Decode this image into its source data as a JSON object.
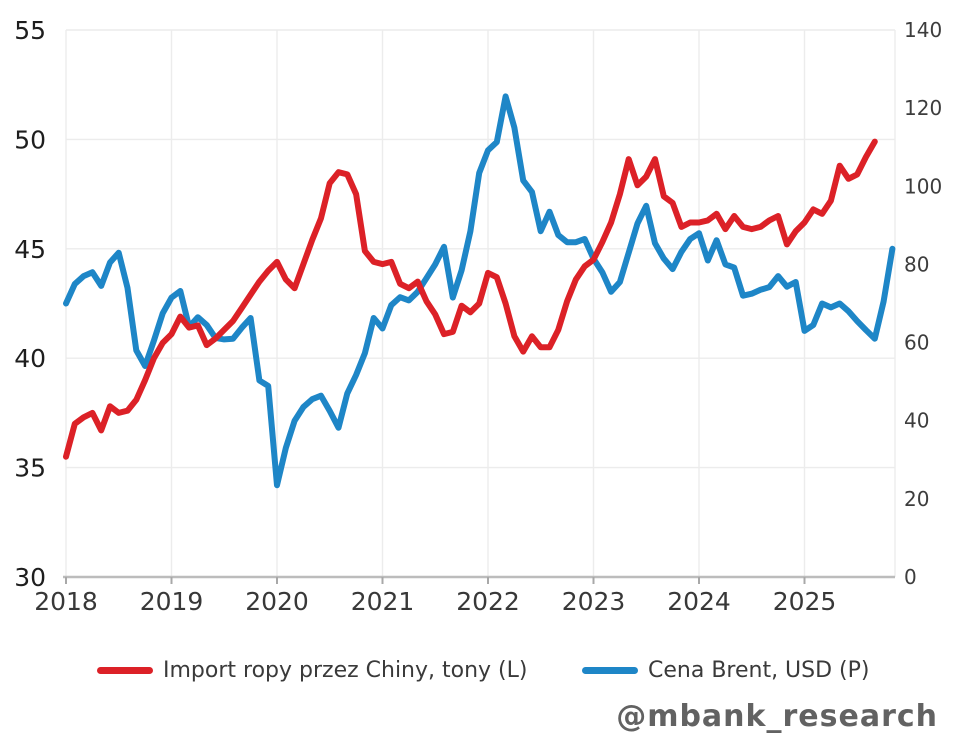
{
  "watermark": "@mbank_research",
  "legend": {
    "items": [
      {
        "label": "Import ropy przez Chiny, tony (L)",
        "color": "#dc2127"
      },
      {
        "label": "Cena Brent, USD (P)",
        "color": "#1e86c7"
      }
    ]
  },
  "chart_data": {
    "type": "line",
    "title": "",
    "x_unit": "year",
    "x_start": 2018.0,
    "x_step": 0.0833333,
    "x_ticks": [
      2018,
      2019,
      2020,
      2021,
      2022,
      2023,
      2024,
      2025
    ],
    "left_axis": {
      "label": "Import ropy przez Chiny, tony",
      "range": [
        30,
        55
      ],
      "ticks": [
        55,
        50,
        45,
        40,
        35,
        30
      ]
    },
    "right_axis": {
      "label": "Cena Brent, USD",
      "range": [
        0,
        140
      ],
      "ticks": [
        140,
        120,
        100,
        80,
        60,
        40,
        20,
        0
      ]
    },
    "grid": true,
    "legend_position": "bottom",
    "colors": {
      "grid": "#ececec",
      "spine": "#bcbcbc",
      "tick": "#a8a8a8",
      "left_label": "#1e1e1e",
      "right_label": "#3d3d3d",
      "bottom_label": "#383838"
    },
    "series": [
      {
        "name": "Cena Brent, USD (P)",
        "axis": "right",
        "color": "#1e86c7",
        "values": [
          70,
          75,
          77,
          78,
          74.5,
          80.5,
          83,
          74,
          58,
          54,
          60.5,
          67.5,
          71.5,
          73.2,
          64,
          66.5,
          64.5,
          61.2,
          60.8,
          61,
          63.8,
          66.3,
          50.3,
          48.9,
          23.5,
          33,
          40,
          43.5,
          45.5,
          46.4,
          42.5,
          38.2,
          47,
          51.7,
          57.3,
          66.3,
          63.6,
          69.6,
          71.6,
          70.8,
          73,
          76.5,
          80,
          84.5,
          71.5,
          78.5,
          88.5,
          103.4,
          109.2,
          111.3,
          123,
          115,
          101.5,
          98.5,
          88.5,
          93.5,
          87.5,
          85.7,
          85.7,
          86.5,
          81.5,
          78,
          73,
          75.5,
          83,
          90.5,
          95,
          85.4,
          81.5,
          78.8,
          83.2,
          86.5,
          88,
          81,
          86.2,
          80,
          79.2,
          72,
          72.5,
          73.5,
          74.2,
          77,
          74.3,
          75.5,
          63,
          64.5,
          70,
          69,
          70,
          68,
          65.5,
          63.2,
          61,
          70.5,
          84
        ]
      },
      {
        "name": "Import ropy przez Chiny, tony (L)",
        "axis": "left",
        "color": "#dc2127",
        "values": [
          35.5,
          37.0,
          37.3,
          37.5,
          36.7,
          37.8,
          37.5,
          37.6,
          38.1,
          39.0,
          40.0,
          40.7,
          41.1,
          41.9,
          41.4,
          41.5,
          40.6,
          40.9,
          41.3,
          41.7,
          42.3,
          42.9,
          43.5,
          44.0,
          44.4,
          43.6,
          43.2,
          44.3,
          45.4,
          46.4,
          48.0,
          48.5,
          48.4,
          47.5,
          44.9,
          44.4,
          44.3,
          44.4,
          43.4,
          43.2,
          43.5,
          42.6,
          42.0,
          41.1,
          41.2,
          42.4,
          42.1,
          42.5,
          43.9,
          43.7,
          42.5,
          41.0,
          40.3,
          41.0,
          40.5,
          40.5,
          41.3,
          42.6,
          43.6,
          44.2,
          44.5,
          45.3,
          46.2,
          47.5,
          49.1,
          47.9,
          48.3,
          49.1,
          47.4,
          47.1,
          46.0,
          46.2,
          46.2,
          46.3,
          46.6,
          45.9,
          46.5,
          46.0,
          45.9,
          46.0,
          46.3,
          46.5,
          45.2,
          45.8,
          46.2,
          46.8,
          46.6,
          47.2,
          48.8,
          48.2,
          48.4,
          49.2,
          49.9
        ]
      }
    ]
  }
}
